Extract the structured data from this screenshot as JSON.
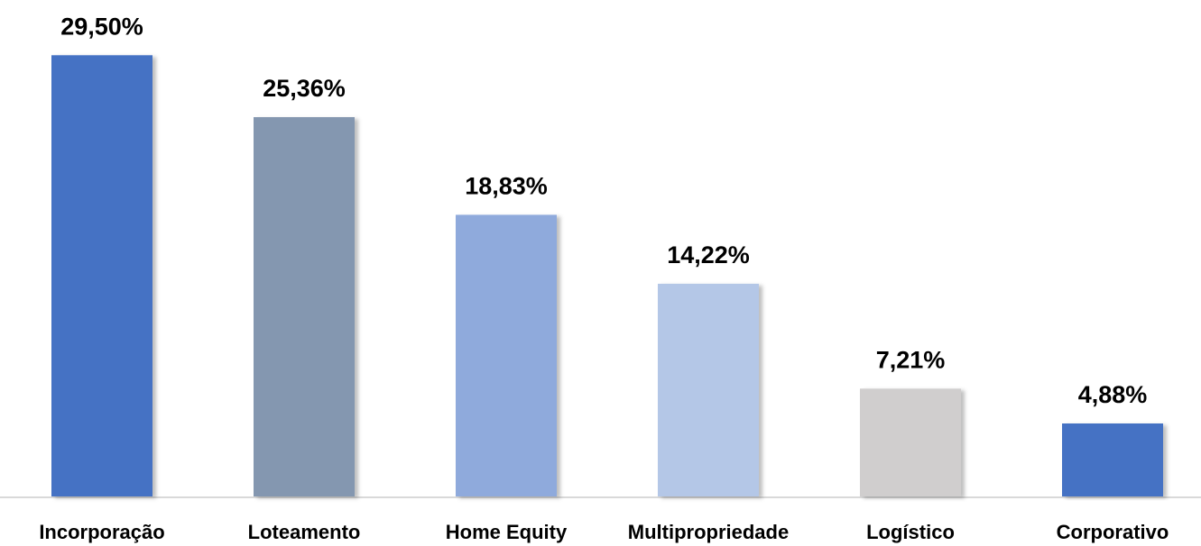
{
  "chart_data": {
    "type": "bar",
    "categories": [
      "Incorporação",
      "Loteamento",
      "Home Equity",
      "Multipropriedade",
      "Logístico",
      "Corporativo"
    ],
    "values": [
      29.5,
      25.36,
      18.83,
      14.22,
      7.21,
      4.88
    ],
    "value_labels": [
      "29,50%",
      "25,36%",
      "18,83%",
      "14,22%",
      "7,21%",
      "4,88%"
    ],
    "colors": [
      "#4472c4",
      "#8497b0",
      "#8faadc",
      "#b4c7e7",
      "#d0cece",
      "#4472c4"
    ],
    "ylim": [
      0,
      30
    ]
  }
}
